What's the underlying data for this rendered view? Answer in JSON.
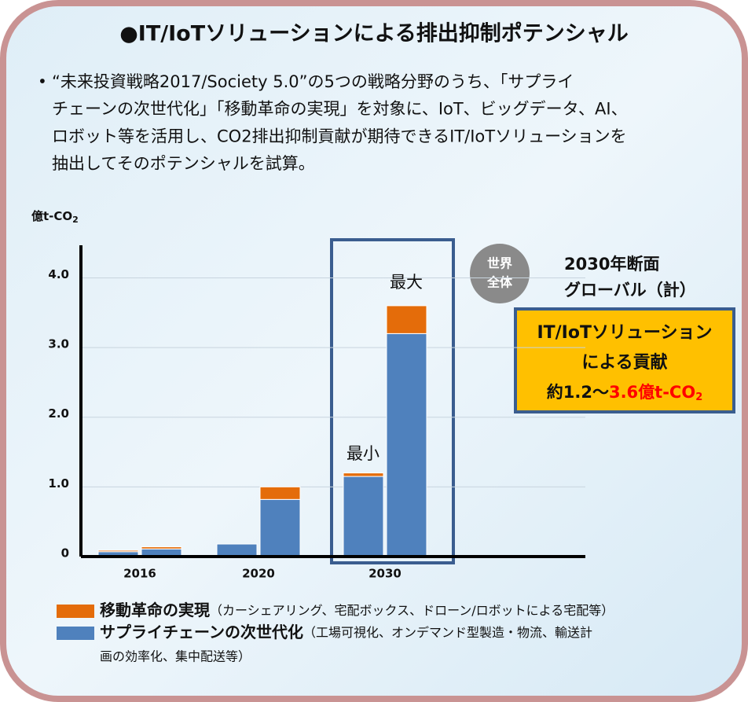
{
  "chart_data": {
    "type": "bar",
    "title": "●IT/IoTソリューションによる排出抑制ポテンシャル",
    "bullet": "•",
    "description_lines": [
      "“未来投資戦略2017/Society 5.0”の5つの戦略分野のうち、「サプライ",
      "チェーンの次世代化」「移動革命の実現」を対象に、IoT、ビッグデータ、AI、",
      "ロボット等を活用し、CO2排出抑制貢献が期待できるIT/IoTソリューションを",
      "抽出してそのポテンシャルを試算。"
    ],
    "y_label": [
      "億t-CO",
      "2"
    ],
    "categories": [
      "2016",
      "2020",
      "2030"
    ],
    "series": [
      {
        "name": "移動革命の実現",
        "color": "#E46C0A",
        "description": [
          "（カーシェアリング、宅配ボックス、ドローン/ロボットによる宅配等）"
        ],
        "values": [
          [
            0.02,
            0.03
          ],
          [
            0,
            0.18
          ],
          [
            0.05,
            0.4
          ]
        ]
      },
      {
        "name": "サプライチェーンの次世代化",
        "color": "#4F81BD",
        "description": [
          "（工場可視化、オンデマンド型製造・物流、輸送計",
          "画の効率化、集中配送等）"
        ],
        "values": [
          [
            0.07,
            0.11
          ],
          [
            0.18,
            0.82
          ],
          [
            1.15,
            3.2
          ]
        ]
      }
    ],
    "ylim": [
      0,
      4.4
    ],
    "yticks": [
      0,
      {
        "value": 1,
        "label": "1.0"
      },
      {
        "value": 2,
        "label": "2.0"
      },
      {
        "value": 3,
        "label": "3.0"
      },
      {
        "value": 4,
        "label": "4.0"
      }
    ],
    "grid": true,
    "annotations": {
      "min": "最小",
      "max": "最大",
      "world": [
        "世界",
        "全体"
      ],
      "section": [
        "2030年断面",
        "グローバル（計）"
      ],
      "box": [
        "IT/IoTソリューション",
        "による貢献",
        "約1.2〜",
        "3.6億t-CO",
        "2"
      ]
    }
  }
}
